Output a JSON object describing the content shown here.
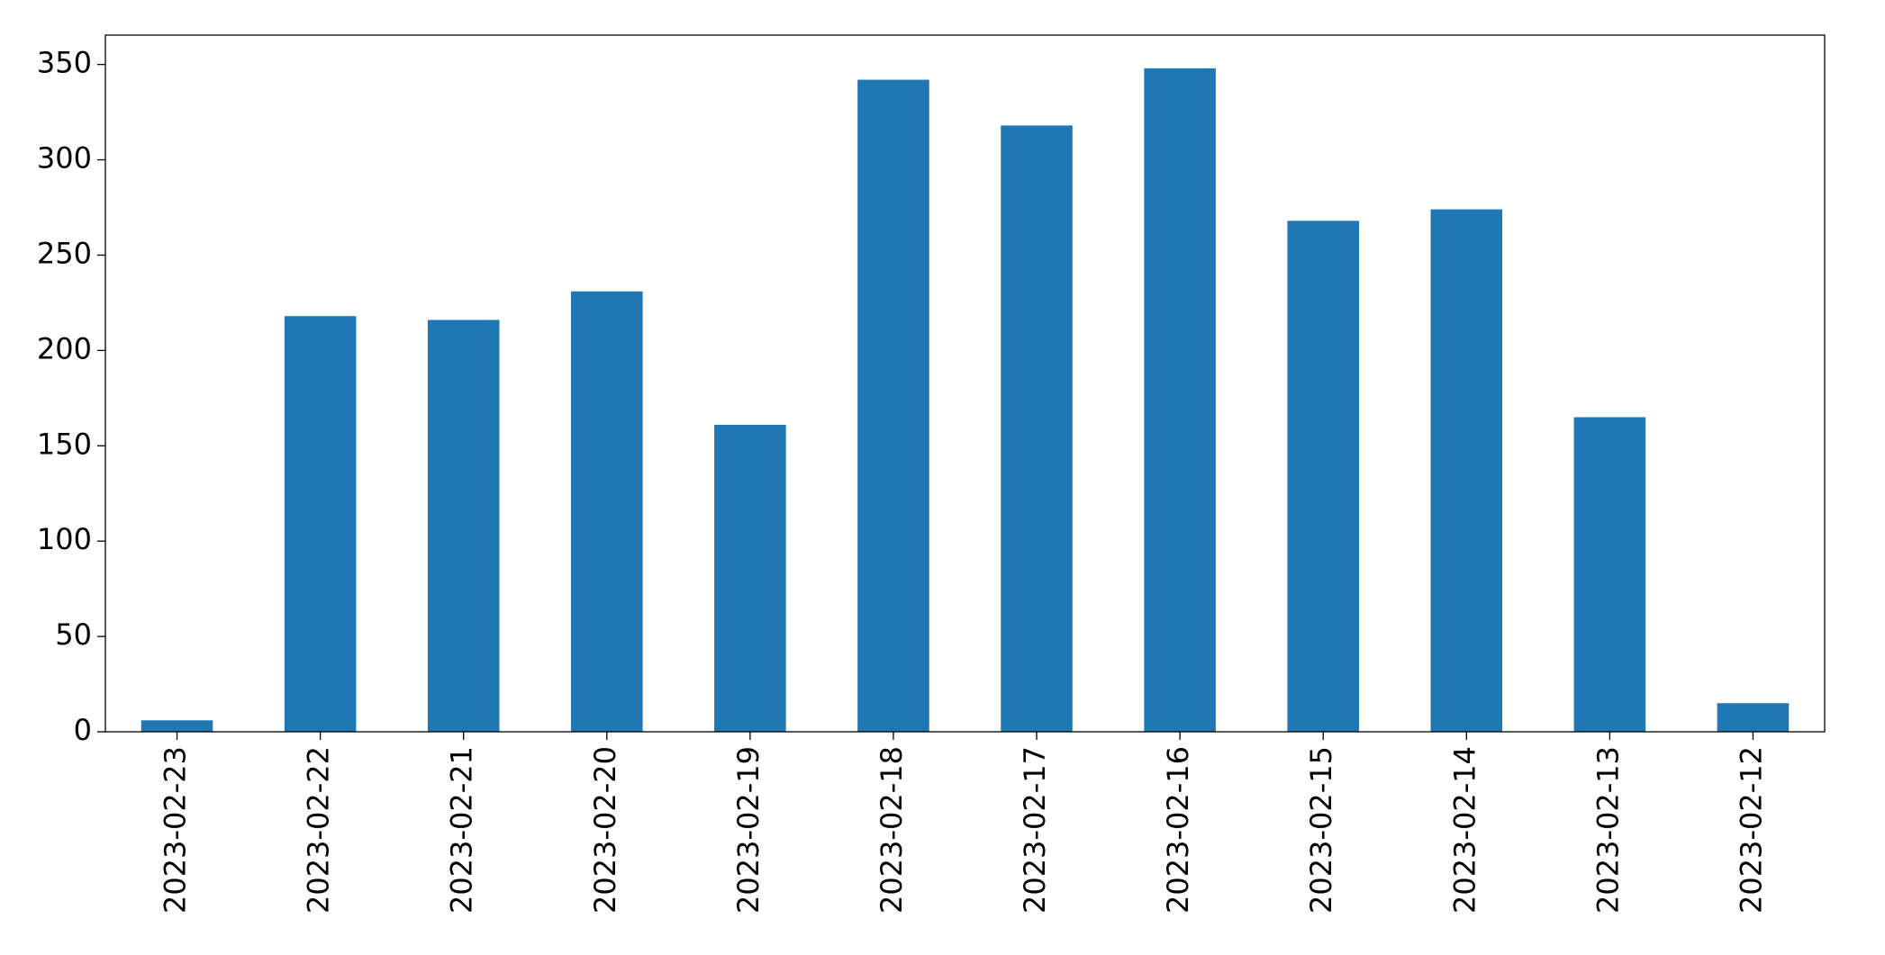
{
  "chart_data": {
    "type": "bar",
    "categories": [
      "2023-02-23",
      "2023-02-22",
      "2023-02-21",
      "2023-02-20",
      "2023-02-19",
      "2023-02-18",
      "2023-02-17",
      "2023-02-16",
      "2023-02-15",
      "2023-02-14",
      "2023-02-13",
      "2023-02-12"
    ],
    "values": [
      6,
      218,
      216,
      231,
      161,
      342,
      318,
      348,
      268,
      274,
      165,
      15
    ],
    "color": "#1f77b4",
    "ylim": [
      0,
      365.4
    ],
    "yticks": [
      0,
      50,
      100,
      150,
      200,
      250,
      300,
      350
    ],
    "grid": false
  }
}
